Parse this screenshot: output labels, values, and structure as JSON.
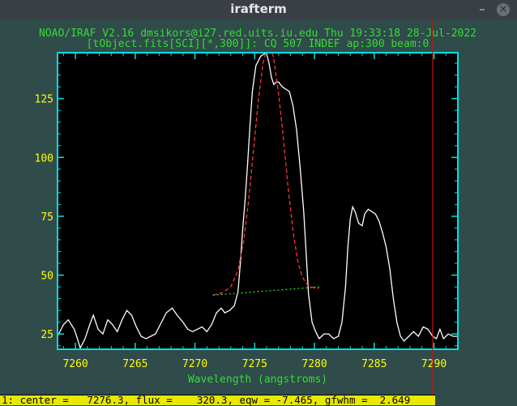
{
  "window": {
    "title": "irafterm",
    "minimize_glyph": "–",
    "close_glyph": "×"
  },
  "header": {
    "line1": "NOAO/IRAF V2.16 dmsikors@i27.red.uits.iu.edu Thu 19:33:18 28-Jul-2022",
    "line2": "[tObject.fits[SCI][*,300]]: CQ 507 INDEF ap:300 beam:0"
  },
  "status_line": "1: center =   7276.3, flux =    320.3, eqw = -7.465, gfwhm =  2.649",
  "colors": {
    "background": "#000000",
    "frame": "#00e0e0",
    "ticks": "#ffff00",
    "header_text": "#33dd33",
    "spectrum": "#ffffff",
    "fit": "#ff3333",
    "continuum": "#33dd33",
    "cursor": "#cc1111",
    "status_bg": "#e8e800"
  },
  "chart_data": {
    "type": "line",
    "title": "NOAO/IRAF V2.16 dmsikors@i27.red.uits.iu.edu Thu 19:33:18 28-Jul-2022",
    "subtitle": "[tObject.fits[SCI][*,300]]: CQ 507 INDEF ap:300 beam:0",
    "xlabel": "Wavelength (angstroms)",
    "ylabel": "",
    "xlim": [
      7258.5,
      7292.0
    ],
    "ylim": [
      18.5,
      144.5
    ],
    "x_ticks": [
      7260,
      7265,
      7270,
      7275,
      7280,
      7285,
      7290
    ],
    "y_ticks": [
      25,
      50,
      75,
      100,
      125
    ],
    "grid": false,
    "series": [
      {
        "style": "solid",
        "points": [
          [
            7258.5,
            24
          ],
          [
            7259.0,
            29
          ],
          [
            7259.4,
            31
          ],
          [
            7259.9,
            27
          ],
          [
            7260.1,
            24
          ],
          [
            7260.4,
            19
          ],
          [
            7260.8,
            23
          ],
          [
            7261.2,
            29
          ],
          [
            7261.5,
            33
          ],
          [
            7261.9,
            27
          ],
          [
            7262.3,
            25
          ],
          [
            7262.7,
            31
          ],
          [
            7263.1,
            29
          ],
          [
            7263.5,
            26
          ],
          [
            7263.9,
            31
          ],
          [
            7264.3,
            35
          ],
          [
            7264.7,
            33
          ],
          [
            7265.1,
            28
          ],
          [
            7265.5,
            24
          ],
          [
            7265.9,
            23
          ],
          [
            7266.3,
            24
          ],
          [
            7266.7,
            25
          ],
          [
            7267.1,
            29
          ],
          [
            7267.6,
            34
          ],
          [
            7268.1,
            36
          ],
          [
            7268.5,
            33
          ],
          [
            7269.0,
            30
          ],
          [
            7269.4,
            27
          ],
          [
            7269.8,
            26
          ],
          [
            7270.2,
            27
          ],
          [
            7270.6,
            28
          ],
          [
            7271.0,
            26
          ],
          [
            7271.4,
            29
          ],
          [
            7271.8,
            34
          ],
          [
            7272.2,
            36
          ],
          [
            7272.5,
            34
          ],
          [
            7272.9,
            35
          ],
          [
            7273.3,
            37
          ],
          [
            7273.6,
            43
          ],
          [
            7273.8,
            55
          ],
          [
            7274.0,
            70
          ],
          [
            7274.2,
            82
          ],
          [
            7274.4,
            97
          ],
          [
            7274.6,
            113
          ],
          [
            7274.8,
            128
          ],
          [
            7275.1,
            139
          ],
          [
            7275.5,
            143
          ],
          [
            7275.8,
            144
          ],
          [
            7276.0,
            144
          ],
          [
            7276.2,
            140
          ],
          [
            7276.4,
            134
          ],
          [
            7276.6,
            131
          ],
          [
            7276.8,
            132
          ],
          [
            7277.0,
            132
          ],
          [
            7277.3,
            130
          ],
          [
            7277.6,
            129
          ],
          [
            7277.9,
            128
          ],
          [
            7278.2,
            122
          ],
          [
            7278.5,
            112
          ],
          [
            7278.8,
            96
          ],
          [
            7279.1,
            77
          ],
          [
            7279.3,
            60
          ],
          [
            7279.5,
            42
          ],
          [
            7279.8,
            30
          ],
          [
            7280.1,
            26
          ],
          [
            7280.4,
            23
          ],
          [
            7280.8,
            25
          ],
          [
            7281.2,
            25
          ],
          [
            7281.6,
            23
          ],
          [
            7282.0,
            24
          ],
          [
            7282.3,
            30
          ],
          [
            7282.6,
            45
          ],
          [
            7282.8,
            62
          ],
          [
            7283.0,
            74
          ],
          [
            7283.2,
            79
          ],
          [
            7283.4,
            77
          ],
          [
            7283.7,
            72
          ],
          [
            7284.0,
            71
          ],
          [
            7284.2,
            76
          ],
          [
            7284.5,
            78
          ],
          [
            7284.8,
            77
          ],
          [
            7285.1,
            76
          ],
          [
            7285.4,
            73
          ],
          [
            7285.7,
            68
          ],
          [
            7286.0,
            62
          ],
          [
            7286.3,
            53
          ],
          [
            7286.6,
            40
          ],
          [
            7286.9,
            30
          ],
          [
            7287.2,
            24
          ],
          [
            7287.5,
            22
          ],
          [
            7287.9,
            24
          ],
          [
            7288.3,
            26
          ],
          [
            7288.7,
            24
          ],
          [
            7289.1,
            28
          ],
          [
            7289.5,
            27
          ],
          [
            7289.9,
            24
          ],
          [
            7290.2,
            23
          ],
          [
            7290.5,
            27
          ],
          [
            7290.8,
            23
          ],
          [
            7291.2,
            25
          ],
          [
            7291.6,
            24
          ],
          [
            7292.0,
            24
          ]
        ]
      },
      {
        "style": "dashed-fit",
        "points": [
          [
            7271.5,
            41.5
          ],
          [
            7272.3,
            42.5
          ],
          [
            7273.0,
            45
          ],
          [
            7273.6,
            52
          ],
          [
            7274.1,
            65
          ],
          [
            7274.5,
            82
          ],
          [
            7274.9,
            103
          ],
          [
            7275.3,
            124
          ],
          [
            7275.7,
            140
          ],
          [
            7276.0,
            146
          ],
          [
            7276.3,
            147
          ],
          [
            7276.6,
            142
          ],
          [
            7277.0,
            127
          ],
          [
            7277.4,
            108
          ],
          [
            7277.8,
            87
          ],
          [
            7278.2,
            69
          ],
          [
            7278.6,
            56
          ],
          [
            7279.0,
            49
          ],
          [
            7279.4,
            46
          ],
          [
            7280.0,
            44.5
          ],
          [
            7280.4,
            44.5
          ]
        ]
      },
      {
        "style": "dotted-continuum",
        "points": [
          [
            7271.5,
            41.5
          ],
          [
            7280.4,
            45
          ]
        ]
      }
    ],
    "cursor_x": 7289.9
  }
}
